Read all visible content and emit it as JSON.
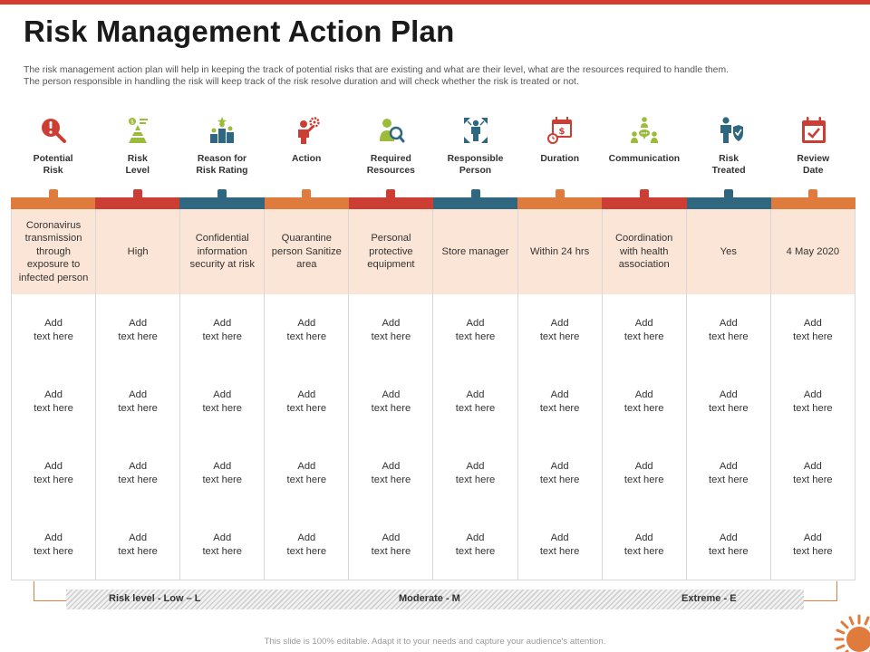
{
  "title": "Risk Management Action Plan",
  "intro": {
    "line1": "The risk management action plan will help in keeping the track of potential risks  that are existing and what are their level, what are the resources required to handle them.",
    "line2": "The person responsible in handling the risk will keep track of the risk resolve duration and will check whether the risk is treated or not."
  },
  "columns": [
    {
      "icon": "magnifier-alert-icon",
      "label1": "Potential",
      "label2": "Risk",
      "color": "#e07b3e",
      "value": "Coronavirus transmission through exposure to infected person"
    },
    {
      "icon": "coin-pyramid-icon",
      "label1": "Risk",
      "label2": "Level",
      "color": "#cc3e33",
      "value": "High"
    },
    {
      "icon": "podium-icon",
      "label1": "Reason for",
      "label2": "Risk Rating",
      "color": "#2f6680",
      "value": "Confidential information security at risk"
    },
    {
      "icon": "person-gear-icon",
      "label1": "Action",
      "label2": "",
      "color": "#e07b3e",
      "value": "Quarantine person Sanitize area"
    },
    {
      "icon": "person-search-icon",
      "label1": "Required",
      "label2": "Resources",
      "color": "#cc3e33",
      "value": "Personal protective equipment"
    },
    {
      "icon": "person-target-icon",
      "label1": "Responsible",
      "label2": "Person",
      "color": "#2f6680",
      "value": "Store manager"
    },
    {
      "icon": "calendar-clock-icon",
      "label1": "Duration",
      "label2": "",
      "color": "#e07b3e",
      "value": "Within 24 hrs"
    },
    {
      "icon": "team-chat-icon",
      "label1": "Communication",
      "label2": "",
      "color": "#cc3e33",
      "value": "Coordination with health association"
    },
    {
      "icon": "person-shield-icon",
      "label1": "Risk",
      "label2": "Treated",
      "color": "#2f6680",
      "value": "Yes"
    },
    {
      "icon": "calendar-check-icon",
      "label1": "Review",
      "label2": "Date",
      "color": "#e07b3e",
      "value": "4 May 2020"
    }
  ],
  "placeholder": {
    "line1": "Add",
    "line2": "text here"
  },
  "legend": {
    "low": "Risk level - Low – L",
    "moderate": "Moderate - M",
    "extreme": "Extreme - E"
  },
  "footer": "This slide is 100% editable. Adapt it to your needs and capture your audience's attention.",
  "colors": {
    "red": "#cc3e33",
    "orange": "#e07b3e",
    "teal": "#2f6680",
    "green": "#9bbb3b",
    "cell_fill": "#fbe5d6"
  }
}
